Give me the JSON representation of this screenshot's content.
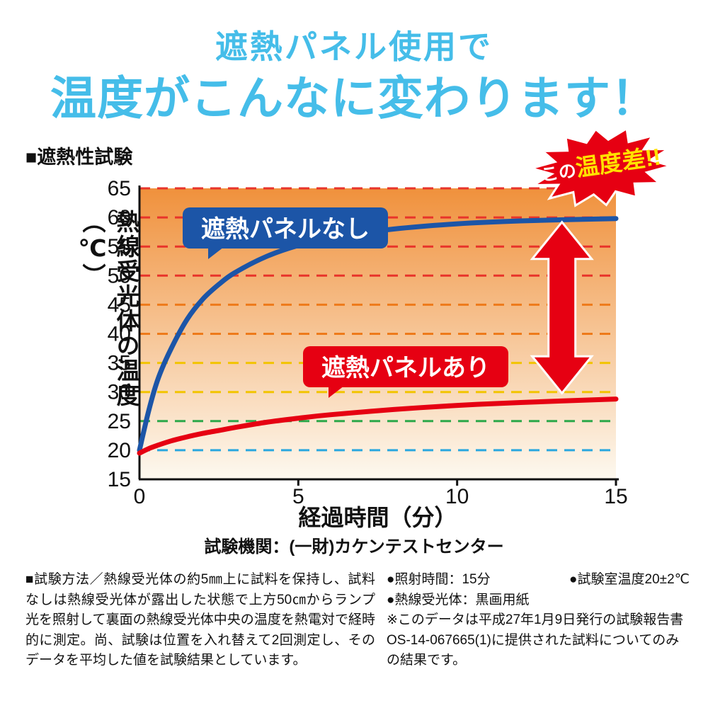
{
  "header": {
    "line1": "遮熱パネル使用で",
    "line2": "温度がこんなに変わります！",
    "color": "#45bde9"
  },
  "section_heading": "■遮熱性試験",
  "badge": {
    "prefix": "この",
    "main": "温度差!!",
    "bg_color": "#e60012",
    "prefix_color": "#ffffff",
    "main_color": "#ffe100"
  },
  "chart_data": {
    "type": "line",
    "title": "遮熱性試験",
    "xlabel": "経過時間（分）",
    "ylabel": "熱線受光体の温度（℃）",
    "xlim": [
      0,
      15
    ],
    "ylim": [
      15,
      65
    ],
    "x_ticks": [
      0,
      5,
      10,
      15
    ],
    "y_ticks": [
      15,
      20,
      25,
      30,
      35,
      40,
      45,
      50,
      55,
      60,
      65
    ],
    "grid": "horizontal dashed colored lines",
    "legend_position": "inline label boxes on plot",
    "plot_bg_gradient": [
      "#f0913c",
      "#fdf9f0"
    ],
    "gridlines": [
      {
        "y": 65,
        "color": "#e8342a"
      },
      {
        "y": 60,
        "color": "#e8342a"
      },
      {
        "y": 55,
        "color": "#e8342a"
      },
      {
        "y": 50,
        "color": "#e8342a"
      },
      {
        "y": 45,
        "color": "#ee7a1a"
      },
      {
        "y": 40,
        "color": "#ee7a1a"
      },
      {
        "y": 35,
        "color": "#f2c400"
      },
      {
        "y": 30,
        "color": "#f2c400"
      },
      {
        "y": 25,
        "color": "#2ca84a"
      },
      {
        "y": 20,
        "color": "#2aa7df"
      }
    ],
    "x": [
      0,
      0.3,
      0.6,
      1,
      1.5,
      2,
      2.5,
      3,
      4,
      5,
      6,
      8,
      10,
      12,
      15
    ],
    "series": [
      {
        "name": "without_panel",
        "label": "遮熱パネルなし",
        "color": "#1c55a7",
        "values": [
          20,
          27,
          32.5,
          37.5,
          42.5,
          46,
          48.5,
          50.5,
          53.3,
          55.2,
          56.5,
          58.0,
          58.9,
          59.4,
          59.8
        ]
      },
      {
        "name": "with_panel",
        "label": "遮熱パネルあり",
        "color": "#e60012",
        "values": [
          19.5,
          20.3,
          20.9,
          21.6,
          22.3,
          22.9,
          23.4,
          23.9,
          24.8,
          25.5,
          26.1,
          27.0,
          27.7,
          28.2,
          28.8
        ]
      }
    ],
    "arrow": {
      "x": 13.3,
      "from": 29.8,
      "to": 59.2,
      "color": "#e60012"
    }
  },
  "footer": {
    "organization": "試験機関：(一財)カケンテストセンター",
    "method": "■試験方法／熱線受光体の約5㎜上に試料を保持し、試料なしは熱線受光体が露出した状態で上方50㎝からランプ光を照射して裏面の熱線受光体中央の温度を熱電対で経時的に測定。尚、試験は位置を入れ替えて2回測定し、そのデータを平均した値を試験結果としています。",
    "cond1a": "●照射時間：15分",
    "cond1b": "●試験室温度20±2℃",
    "cond2": "●熱線受光体：黒画用紙",
    "note": "※このデータは平成27年1月9日発行の試験報告書OS-14-067665(1)に提供された試料についてのみの結果です。"
  }
}
